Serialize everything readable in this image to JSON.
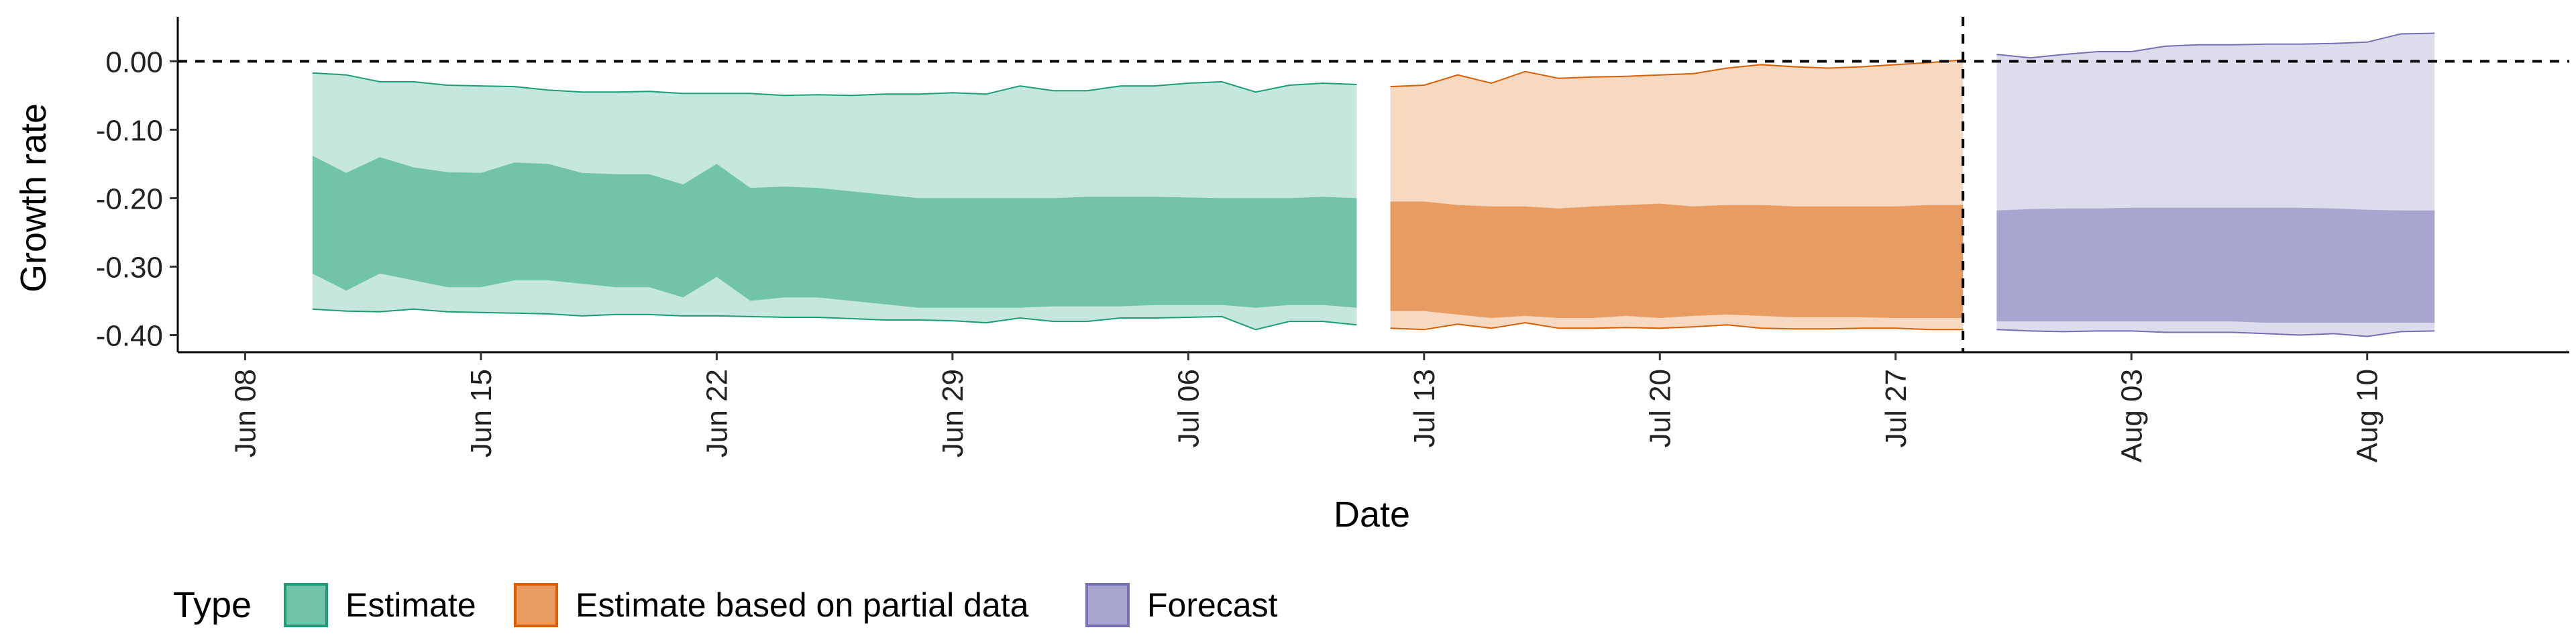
{
  "chart_data": {
    "type": "area",
    "title": "",
    "xlabel": "Date",
    "ylabel": "Growth rate",
    "ylim": [
      -0.425,
      0.065
    ],
    "xlim": [
      "2020-06-06",
      "2020-08-16"
    ],
    "y_ticks": [
      0.0,
      -0.1,
      -0.2,
      -0.3,
      -0.4
    ],
    "y_tick_labels": [
      "0.00",
      "-0.10",
      "-0.20",
      "-0.30",
      "-0.40"
    ],
    "x_ticks": [
      "2020-06-08",
      "2020-06-15",
      "2020-06-22",
      "2020-06-29",
      "2020-07-06",
      "2020-07-13",
      "2020-07-20",
      "2020-07-27",
      "2020-08-03",
      "2020-08-10"
    ],
    "x_tick_labels": [
      "Jun 08",
      "Jun 15",
      "Jun 22",
      "Jun 29",
      "Jul 06",
      "Jul 13",
      "Jul 20",
      "Jul 27",
      "Aug 03",
      "Aug 10"
    ],
    "reference_lines": [
      {
        "orientation": "horizontal",
        "value": 0.0,
        "style": "dashed"
      },
      {
        "orientation": "vertical",
        "value": "2020-07-29",
        "style": "dashed"
      }
    ],
    "legend": {
      "title": "Type",
      "placement": "bottom-left",
      "entries": [
        "Estimate",
        "Estimate based on partial data",
        "Forecast"
      ]
    },
    "colors": {
      "Estimate": {
        "outer": "#c5e7dd",
        "inner": "#71c3aa",
        "line": "#1b9e77"
      },
      "Estimate based on partial data": {
        "outer": "#f7d8c0",
        "inner": "#e89c62",
        "line": "#d95f02"
      },
      "Forecast": {
        "outer": "#dcdcec",
        "inner": "#a8a6d0",
        "line": "#7570b3"
      }
    },
    "series": [
      {
        "name": "Estimate",
        "x": [
          "2020-06-10",
          "2020-06-11",
          "2020-06-12",
          "2020-06-13",
          "2020-06-14",
          "2020-06-15",
          "2020-06-16",
          "2020-06-17",
          "2020-06-18",
          "2020-06-19",
          "2020-06-20",
          "2020-06-21",
          "2020-06-22",
          "2020-06-23",
          "2020-06-24",
          "2020-06-25",
          "2020-06-26",
          "2020-06-27",
          "2020-06-28",
          "2020-06-29",
          "2020-06-30",
          "2020-07-01",
          "2020-07-02",
          "2020-07-03",
          "2020-07-04",
          "2020-07-05",
          "2020-07-06",
          "2020-07-07",
          "2020-07-08",
          "2020-07-09",
          "2020-07-10",
          "2020-07-11"
        ],
        "upper_90": [
          -0.017,
          -0.02,
          -0.03,
          -0.03,
          -0.035,
          -0.036,
          -0.037,
          -0.042,
          -0.045,
          -0.045,
          -0.044,
          -0.047,
          -0.047,
          -0.047,
          -0.05,
          -0.049,
          -0.05,
          -0.048,
          -0.048,
          -0.046,
          -0.048,
          -0.036,
          -0.043,
          -0.043,
          -0.036,
          -0.036,
          -0.032,
          -0.03,
          -0.045,
          -0.035,
          -0.032,
          -0.034
        ],
        "upper_50": [
          -0.138,
          -0.163,
          -0.14,
          -0.155,
          -0.162,
          -0.163,
          -0.148,
          -0.15,
          -0.163,
          -0.165,
          -0.165,
          -0.18,
          -0.15,
          -0.185,
          -0.183,
          -0.185,
          -0.19,
          -0.195,
          -0.2,
          -0.2,
          -0.2,
          -0.2,
          -0.2,
          -0.198,
          -0.198,
          -0.198,
          -0.199,
          -0.2,
          -0.2,
          -0.2,
          -0.198,
          -0.2
        ],
        "lower_50": [
          -0.31,
          -0.335,
          -0.31,
          -0.32,
          -0.33,
          -0.33,
          -0.32,
          -0.32,
          -0.325,
          -0.33,
          -0.33,
          -0.345,
          -0.315,
          -0.35,
          -0.345,
          -0.345,
          -0.35,
          -0.355,
          -0.36,
          -0.36,
          -0.36,
          -0.36,
          -0.358,
          -0.358,
          -0.358,
          -0.356,
          -0.356,
          -0.356,
          -0.36,
          -0.356,
          -0.356,
          -0.36
        ],
        "lower_90": [
          -0.362,
          -0.365,
          -0.366,
          -0.362,
          -0.366,
          -0.367,
          -0.368,
          -0.369,
          -0.372,
          -0.37,
          -0.37,
          -0.372,
          -0.372,
          -0.373,
          -0.374,
          -0.374,
          -0.376,
          -0.378,
          -0.378,
          -0.379,
          -0.382,
          -0.375,
          -0.38,
          -0.38,
          -0.375,
          -0.375,
          -0.374,
          -0.373,
          -0.392,
          -0.38,
          -0.38,
          -0.385
        ]
      },
      {
        "name": "Estimate based on partial data",
        "x": [
          "2020-07-12",
          "2020-07-13",
          "2020-07-14",
          "2020-07-15",
          "2020-07-16",
          "2020-07-17",
          "2020-07-18",
          "2020-07-19",
          "2020-07-20",
          "2020-07-21",
          "2020-07-22",
          "2020-07-23",
          "2020-07-24",
          "2020-07-25",
          "2020-07-26",
          "2020-07-27",
          "2020-07-28",
          "2020-07-29"
        ],
        "upper_90": [
          -0.037,
          -0.035,
          -0.02,
          -0.032,
          -0.015,
          -0.025,
          -0.023,
          -0.022,
          -0.02,
          -0.018,
          -0.01,
          -0.005,
          -0.008,
          -0.01,
          -0.008,
          -0.005,
          -0.002,
          0.002
        ],
        "upper_50": [
          -0.205,
          -0.205,
          -0.21,
          -0.212,
          -0.212,
          -0.215,
          -0.212,
          -0.21,
          -0.208,
          -0.212,
          -0.21,
          -0.21,
          -0.212,
          -0.212,
          -0.212,
          -0.212,
          -0.21,
          -0.21
        ],
        "lower_50": [
          -0.365,
          -0.365,
          -0.37,
          -0.375,
          -0.372,
          -0.375,
          -0.375,
          -0.372,
          -0.375,
          -0.372,
          -0.37,
          -0.372,
          -0.374,
          -0.374,
          -0.374,
          -0.375,
          -0.375,
          -0.375
        ],
        "lower_90": [
          -0.39,
          -0.392,
          -0.384,
          -0.39,
          -0.382,
          -0.39,
          -0.39,
          -0.389,
          -0.39,
          -0.388,
          -0.385,
          -0.39,
          -0.391,
          -0.391,
          -0.39,
          -0.39,
          -0.392,
          -0.392
        ]
      },
      {
        "name": "Forecast",
        "x": [
          "2020-07-30",
          "2020-07-31",
          "2020-08-01",
          "2020-08-02",
          "2020-08-03",
          "2020-08-04",
          "2020-08-05",
          "2020-08-06",
          "2020-08-07",
          "2020-08-08",
          "2020-08-09",
          "2020-08-10",
          "2020-08-11",
          "2020-08-12"
        ],
        "upper_90": [
          0.01,
          0.005,
          0.01,
          0.014,
          0.014,
          0.022,
          0.024,
          0.024,
          0.025,
          0.025,
          0.026,
          0.028,
          0.04,
          0.041
        ],
        "upper_50": [
          -0.218,
          -0.216,
          -0.215,
          -0.215,
          -0.214,
          -0.214,
          -0.214,
          -0.214,
          -0.214,
          -0.214,
          -0.215,
          -0.217,
          -0.218,
          -0.218
        ],
        "lower_50": [
          -0.38,
          -0.38,
          -0.38,
          -0.38,
          -0.38,
          -0.38,
          -0.38,
          -0.38,
          -0.382,
          -0.382,
          -0.382,
          -0.382,
          -0.382,
          -0.382
        ],
        "lower_90": [
          -0.392,
          -0.394,
          -0.395,
          -0.394,
          -0.394,
          -0.396,
          -0.396,
          -0.396,
          -0.398,
          -0.4,
          -0.398,
          -0.402,
          -0.395,
          -0.394
        ]
      }
    ]
  }
}
